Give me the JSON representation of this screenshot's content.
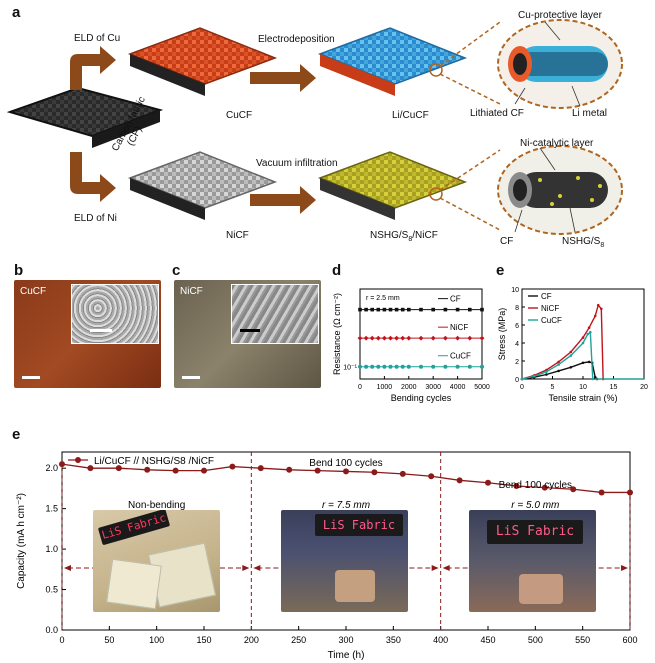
{
  "panel_letters": {
    "a": "a",
    "b": "b",
    "c": "c",
    "d": "d",
    "e": "e",
    "f": "e"
  },
  "schematic": {
    "eld_cu": "ELD of Cu",
    "eld_ni": "ELD of Ni",
    "carbon_fabric": "Carbon fabric",
    "cf_abbr": "(CF)",
    "electrodeposition": "Electrodeposition",
    "vacuum_infiltration": "Vacuum infiltration",
    "cucf": "CuCF",
    "li_cucf": "Li/CuCF",
    "nicf": "NiCF",
    "nshg_s8_nicf": "NSHG/S8/NiCF",
    "cu_protective_layer": "Cu-protective layer",
    "lithiated_cf": "Lithiated CF",
    "li_metal": "Li metal",
    "ni_catalytic_layer": "Ni-catalytic layer",
    "cf": "CF",
    "nshg_s8": "NSHG/S8"
  },
  "photo_b": {
    "label": "CuCF"
  },
  "photo_c": {
    "label": "NiCF"
  },
  "colors": {
    "cf": "#111111",
    "nicf": "#c0151c",
    "cucf": "#1fa39a",
    "curve_e": "#8b1a1a",
    "cu_red": "#e85a2a",
    "li_blue": "#46b0e6",
    "ni_gray": "#b8b8b8",
    "s_yellow": "#c9c12a"
  },
  "chart_data": [
    {
      "type": "scatter",
      "panel": "d",
      "xlabel": "Bending cycles",
      "ylabel": "Resistance (Ω cm⁻²)",
      "annotation": "r = 2.5 mm",
      "xlim": [
        0,
        5000
      ],
      "xticks": [
        0,
        1000,
        2000,
        3000,
        4000,
        5000
      ],
      "yscale": "log",
      "yticks_labels": [
        "10⁻¹"
      ],
      "x": [
        0,
        250,
        500,
        750,
        1000,
        1250,
        1500,
        1750,
        2000,
        2500,
        3000,
        3500,
        4000,
        4500,
        5000
      ],
      "series": [
        {
          "name": "CF",
          "values": [
            2.5,
            2.5,
            2.5,
            2.5,
            2.5,
            2.5,
            2.5,
            2.5,
            2.5,
            2.5,
            2.5,
            2.5,
            2.5,
            2.5,
            2.5
          ]
        },
        {
          "name": "NiCF",
          "values": [
            0.5,
            0.5,
            0.5,
            0.5,
            0.5,
            0.5,
            0.5,
            0.5,
            0.5,
            0.5,
            0.5,
            0.5,
            0.5,
            0.5,
            0.5
          ]
        },
        {
          "name": "CuCF",
          "values": [
            0.1,
            0.1,
            0.1,
            0.1,
            0.1,
            0.1,
            0.1,
            0.1,
            0.1,
            0.1,
            0.1,
            0.1,
            0.1,
            0.1,
            0.1
          ]
        }
      ]
    },
    {
      "type": "line",
      "panel": "e",
      "xlabel": "Tensile strain (%)",
      "ylabel": "Stress (MPa)",
      "xlim": [
        0,
        20
      ],
      "ylim": [
        0,
        10
      ],
      "xticks": [
        0,
        5,
        10,
        15,
        20
      ],
      "yticks": [
        0,
        2,
        4,
        6,
        8,
        10
      ],
      "series": [
        {
          "name": "CF",
          "x": [
            0,
            2,
            4,
            6,
            8,
            10,
            11,
            11.5,
            12,
            12.3
          ],
          "values": [
            0,
            0.2,
            0.5,
            0.9,
            1.3,
            1.8,
            1.9,
            1.8,
            0.2,
            0
          ]
        },
        {
          "name": "NiCF",
          "x": [
            0,
            2,
            4,
            6,
            8,
            10,
            11,
            12,
            12.5,
            13,
            13.3
          ],
          "values": [
            0,
            0.4,
            1.0,
            1.9,
            3.0,
            4.6,
            5.7,
            7.0,
            8.2,
            7.8,
            0
          ]
        },
        {
          "name": "CuCF",
          "x": [
            0,
            2,
            4,
            6,
            8,
            10,
            10.8,
            11.2,
            11.6
          ],
          "values": [
            0,
            0.3,
            0.8,
            1.6,
            2.6,
            4.0,
            5.0,
            5.2,
            0
          ]
        }
      ]
    },
    {
      "type": "line",
      "panel": "e",
      "xlabel": "Time (h)",
      "ylabel": "Capacity (mA h cm⁻²)",
      "xlim": [
        0,
        600
      ],
      "ylim": [
        0,
        2.2
      ],
      "xticks": [
        0,
        50,
        100,
        150,
        200,
        250,
        300,
        350,
        400,
        450,
        500,
        550,
        600
      ],
      "yticks": [
        0.0,
        0.5,
        1.0,
        1.5,
        2.0
      ],
      "legend": "Li/CuCF // NSHG/S8 /NiCF",
      "annotations": [
        "Non-bending",
        "Bend 100 cycles",
        "r = 7.5 mm",
        "Bend 100 cycles",
        "r = 5.0 mm"
      ],
      "inset_text": "LiS Fabric",
      "x": [
        0,
        30,
        60,
        90,
        120,
        150,
        180,
        210,
        240,
        270,
        300,
        330,
        360,
        390,
        420,
        450,
        480,
        510,
        540,
        570,
        600
      ],
      "values": [
        2.05,
        2.0,
        2.0,
        1.98,
        1.97,
        1.97,
        2.02,
        2.0,
        1.98,
        1.97,
        1.96,
        1.95,
        1.93,
        1.9,
        1.85,
        1.82,
        1.78,
        1.76,
        1.74,
        1.7,
        1.7
      ]
    }
  ]
}
